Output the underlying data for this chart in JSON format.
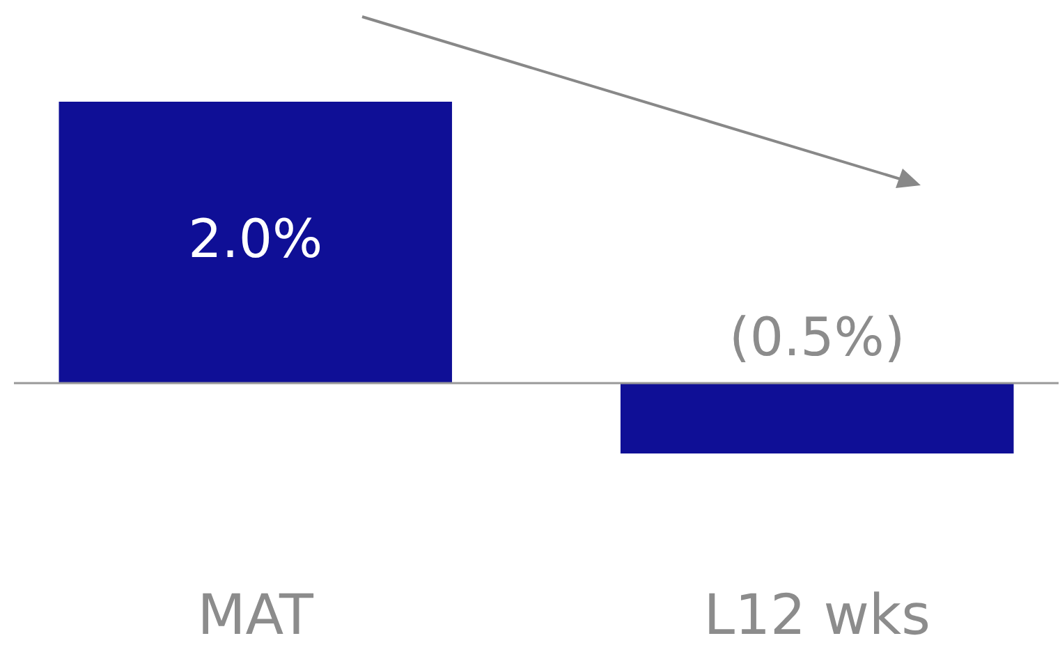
{
  "chart_data": {
    "type": "bar",
    "categories": [
      "MAT",
      "L12 wks"
    ],
    "values": [
      2.0,
      -0.5
    ],
    "value_labels": [
      "2.0%",
      "(0.5%)"
    ],
    "color": "#0f0f96"
  }
}
